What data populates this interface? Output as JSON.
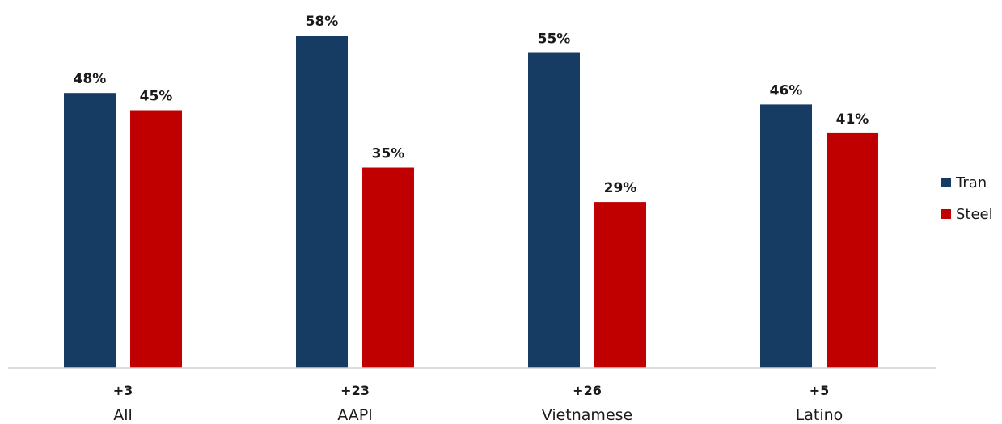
{
  "chart_data": {
    "type": "bar",
    "categories": [
      "All",
      "AAPI",
      "Vietnamese",
      "Latino"
    ],
    "margins": [
      "+3",
      "+23",
      "+26",
      "+5"
    ],
    "series": [
      {
        "name": "Tran",
        "color": "#173C64",
        "values": [
          48,
          58,
          55,
          46
        ],
        "labels": [
          "48%",
          "58%",
          "55%",
          "46%"
        ]
      },
      {
        "name": "Steel",
        "color": "#C00000",
        "values": [
          45,
          35,
          29,
          41
        ],
        "labels": [
          "45%",
          "35%",
          "29%",
          "41%"
        ]
      }
    ],
    "ylim": [
      0,
      60
    ],
    "unit": "%",
    "grid": false,
    "legend_position": "right",
    "title": "",
    "xlabel": "",
    "ylabel": ""
  }
}
